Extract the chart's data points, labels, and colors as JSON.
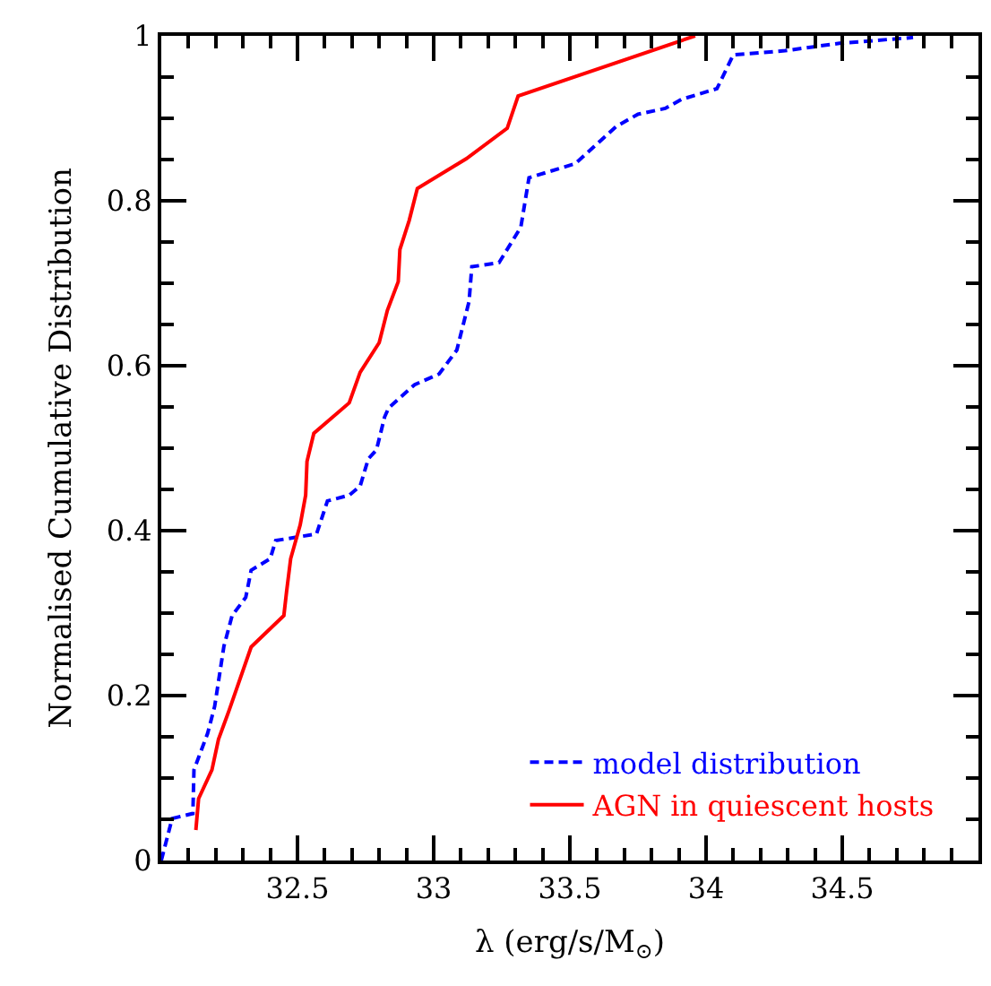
{
  "chart_data": {
    "type": "line",
    "xlabel": "λ (erg/s/M$_{⊙}$)",
    "ylabel": "Normalised Cumulative Distribution",
    "xlim": [
      32,
      35
    ],
    "xticks": [
      32.5,
      33,
      33.5,
      34,
      34.5
    ],
    "ylim": [
      0,
      1
    ],
    "yticks": [
      0,
      0.2,
      0.4,
      0.6,
      0.8,
      1
    ],
    "legend": "bottom right",
    "marker": "none",
    "series": [
      {
        "name": "model distribution",
        "color": "#0000ff",
        "line_style": "dashed",
        "x": [
          32.0,
          32.04,
          32.116,
          32.12,
          32.17,
          32.196,
          32.23,
          32.26,
          32.31,
          32.33,
          32.4,
          32.42,
          32.57,
          32.61,
          32.69,
          32.73,
          32.76,
          32.79,
          32.82,
          32.835,
          32.93,
          33.02,
          33.085,
          33.13,
          33.14,
          33.24,
          33.32,
          33.35,
          33.46,
          33.52,
          33.67,
          33.75,
          33.85,
          33.91,
          34.04,
          34.1,
          34.29,
          34.49,
          34.76
        ],
        "values": [
          0,
          0.051,
          0.057,
          0.11,
          0.154,
          0.187,
          0.26,
          0.297,
          0.319,
          0.352,
          0.366,
          0.388,
          0.396,
          0.436,
          0.443,
          0.454,
          0.487,
          0.498,
          0.538,
          0.549,
          0.577,
          0.59,
          0.619,
          0.678,
          0.72,
          0.725,
          0.768,
          0.828,
          0.839,
          0.845,
          0.89,
          0.905,
          0.912,
          0.923,
          0.936,
          0.977,
          0.982,
          0.991,
          0.998
        ]
      },
      {
        "name": "AGN in quiescent hosts",
        "color": "#ff0000",
        "line_style": "solid",
        "x": [
          32.127,
          32.137,
          32.186,
          32.21,
          32.25,
          32.33,
          32.45,
          32.46,
          32.475,
          32.51,
          32.53,
          32.535,
          32.56,
          32.69,
          32.73,
          32.8,
          32.83,
          32.87,
          32.876,
          32.91,
          32.94,
          33.12,
          33.27,
          33.31,
          33.96
        ],
        "values": [
          0.037,
          0.075,
          0.11,
          0.147,
          0.183,
          0.259,
          0.297,
          0.326,
          0.366,
          0.407,
          0.443,
          0.484,
          0.518,
          0.555,
          0.592,
          0.628,
          0.667,
          0.702,
          0.741,
          0.776,
          0.815,
          0.851,
          0.888,
          0.927,
          1.0
        ]
      }
    ]
  }
}
